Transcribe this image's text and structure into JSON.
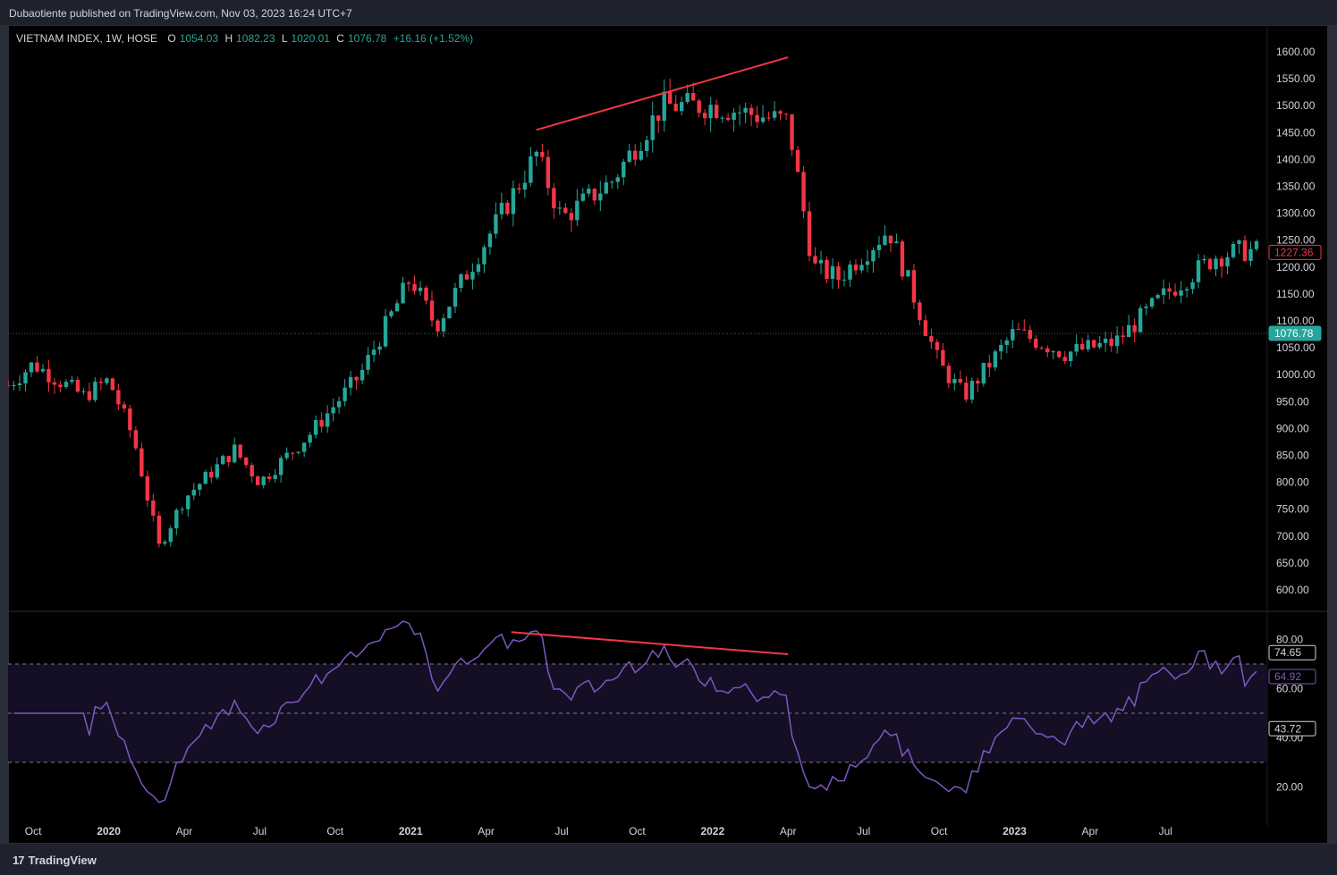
{
  "header": {
    "published_text": "Dubaotiente published on TradingView.com, Nov 03, 2023 16:24 UTC+7"
  },
  "legend": {
    "symbol": "VIETNAM INDEX, 1W, HOSE",
    "o_label": "O",
    "o_value": "1054.03",
    "h_label": "H",
    "h_value": "1082.23",
    "l_label": "L",
    "l_value": "1020.01",
    "c_label": "C",
    "c_value": "1076.78",
    "change": "+16.16 (+1.52%)"
  },
  "footer": {
    "brand": "TradingView",
    "logo_glyph": "17"
  },
  "colors": {
    "up": "#26a69a",
    "down": "#f23645",
    "rsi": "#7e57c2",
    "trend": "#f23645",
    "background": "#000000"
  },
  "chart_data": [
    {
      "type": "candlestick",
      "series_name": "VIETNAM INDEX",
      "ylim": [
        570,
        1620
      ],
      "y_ticks": [
        "1600.00",
        "1550.00",
        "1500.00",
        "1450.00",
        "1400.00",
        "1350.00",
        "1300.00",
        "1250.00",
        "1200.00",
        "1150.00",
        "1100.00",
        "1050.00",
        "1000.00",
        "950.00",
        "900.00",
        "850.00",
        "800.00",
        "750.00",
        "700.00",
        "650.00",
        "600.00"
      ],
      "last_price_label": "1076.78",
      "secondary_price_label": "1227.36",
      "key_points": [
        {
          "date": "2019-09",
          "close": 980
        },
        {
          "date": "2019-10",
          "close": 1020
        },
        {
          "date": "2019-12",
          "close": 960
        },
        {
          "date": "2020-01",
          "close": 990
        },
        {
          "date": "2020-02",
          "close": 880
        },
        {
          "date": "2020-03",
          "close": 680
        },
        {
          "date": "2020-04",
          "close": 770
        },
        {
          "date": "2020-06",
          "close": 860
        },
        {
          "date": "2020-07",
          "close": 800
        },
        {
          "date": "2020-09",
          "close": 890
        },
        {
          "date": "2020-11",
          "close": 1000
        },
        {
          "date": "2021-01",
          "close": 1180
        },
        {
          "date": "2021-02",
          "close": 1090
        },
        {
          "date": "2021-04",
          "close": 1250
        },
        {
          "date": "2021-06",
          "close": 1410
        },
        {
          "date": "2021-07",
          "close": 1290
        },
        {
          "date": "2021-09",
          "close": 1360
        },
        {
          "date": "2021-11",
          "close": 1500
        },
        {
          "date": "2022-01",
          "close": 1500
        },
        {
          "date": "2022-04",
          "close": 1470
        },
        {
          "date": "2022-05",
          "close": 1200
        },
        {
          "date": "2022-06",
          "close": 1180
        },
        {
          "date": "2022-08",
          "close": 1270
        },
        {
          "date": "2022-10",
          "close": 1020
        },
        {
          "date": "2022-11",
          "close": 960
        },
        {
          "date": "2023-01",
          "close": 1080
        },
        {
          "date": "2023-03",
          "close": 1040
        },
        {
          "date": "2023-05",
          "close": 1060
        },
        {
          "date": "2023-07",
          "close": 1150
        },
        {
          "date": "2023-09",
          "close": 1220
        },
        {
          "date": "2023-10",
          "close": 1230
        }
      ],
      "trendline": {
        "from": {
          "date": "2021-06",
          "value": 1455
        },
        "to": {
          "date": "2022-04",
          "value": 1590
        }
      }
    },
    {
      "type": "line",
      "series_name": "RSI",
      "ylim": [
        10,
        90
      ],
      "y_ticks": [
        "80.00",
        "60.00",
        "40.00",
        "20.00"
      ],
      "levels": [
        70,
        50,
        30
      ],
      "value_labels": [
        "74.65",
        "64.92",
        "43.72"
      ],
      "x_ticks": [
        "Oct",
        "2020",
        "Apr",
        "Jul",
        "Oct",
        "2021",
        "Apr",
        "Jul",
        "Oct",
        "2022",
        "Apr",
        "Jul",
        "Oct",
        "2023",
        "Apr",
        "Jul"
      ],
      "trendline": {
        "from": {
          "date": "2021-05",
          "value": 83
        },
        "to": {
          "date": "2022-04",
          "value": 74
        }
      }
    }
  ]
}
